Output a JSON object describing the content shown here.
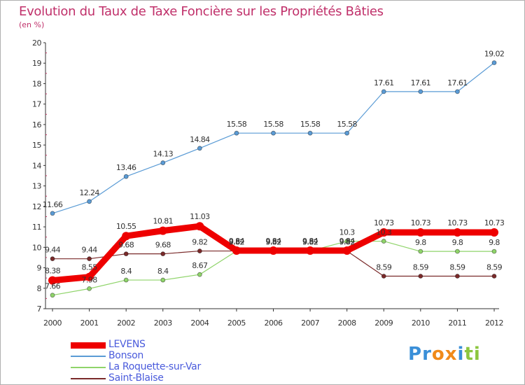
{
  "chart_data": {
    "type": "line",
    "title": "Evolution du Taux de Taxe Foncière sur les Propriétés Bâties",
    "subtitle": "(en %)",
    "xlabel": "",
    "ylabel": "",
    "categories": [
      "2000",
      "2001",
      "2002",
      "2003",
      "2004",
      "2005",
      "2006",
      "2007",
      "2008",
      "2009",
      "2010",
      "2011",
      "2012"
    ],
    "ylim": [
      7,
      20
    ],
    "yticks": [
      7,
      8,
      9,
      10,
      11,
      12,
      13,
      14,
      15,
      16,
      17,
      18,
      19,
      20
    ],
    "grid": false,
    "legend_position": "bottom-left",
    "series": [
      {
        "name": "LEVENS",
        "color": "#ee0000",
        "values": [
          8.38,
          8.55,
          10.55,
          10.81,
          11.03,
          9.84,
          9.84,
          9.84,
          9.84,
          10.73,
          10.73,
          10.73,
          10.73
        ],
        "labels": [
          "8.38",
          "8.55",
          "10.55",
          "10.81",
          "11.03",
          "9.84",
          "9.84",
          "9.84",
          "9.84",
          "10.73",
          "10.73",
          "10.73",
          "10.73"
        ]
      },
      {
        "name": "Bonson",
        "color": "#5a9bd5",
        "values": [
          11.66,
          12.24,
          13.46,
          14.13,
          14.84,
          15.58,
          15.58,
          15.58,
          15.58,
          17.61,
          17.61,
          17.61,
          19.02
        ],
        "labels": [
          "11.66",
          "12.24",
          "13.46",
          "14.13",
          "14.84",
          "15.58",
          "15.58",
          "15.58",
          "15.58",
          "17.61",
          "17.61",
          "17.61",
          "19.02"
        ]
      },
      {
        "name": "La Roquette-sur-Var",
        "color": "#8fd46a",
        "values": [
          7.66,
          7.98,
          8.4,
          8.4,
          8.67,
          9.82,
          9.82,
          9.82,
          10.3,
          10.3,
          9.8,
          9.8,
          9.8
        ],
        "labels": [
          "7.66",
          "7.98",
          "8.4",
          "8.4",
          "8.67",
          "9.82",
          "9.82",
          "9.82",
          "10.3",
          "10.3",
          "9.8",
          "9.8",
          "9.8"
        ]
      },
      {
        "name": "Saint-Blaise",
        "color": "#7a2a2a",
        "values": [
          9.44,
          9.44,
          9.68,
          9.68,
          9.82,
          9.82,
          9.82,
          9.82,
          9.82,
          8.59,
          8.59,
          8.59,
          8.59
        ],
        "labels": [
          "9.44",
          "9.44",
          "9.68",
          "9.68",
          "9.82",
          "9.82",
          "9.82",
          "9.82",
          "9.82",
          "8.59",
          "8.59",
          "8.59",
          "8.59"
        ]
      }
    ]
  },
  "brand": {
    "name": "Proxiti",
    "letters": [
      "P",
      "r",
      "o",
      "x",
      "i",
      "t",
      "i"
    ],
    "colors": [
      "#3a8fd8",
      "#3a8fd8",
      "#f08a1a",
      "#f08a1a",
      "#3a8fd8",
      "#8cc63f",
      "#8cc63f"
    ]
  }
}
